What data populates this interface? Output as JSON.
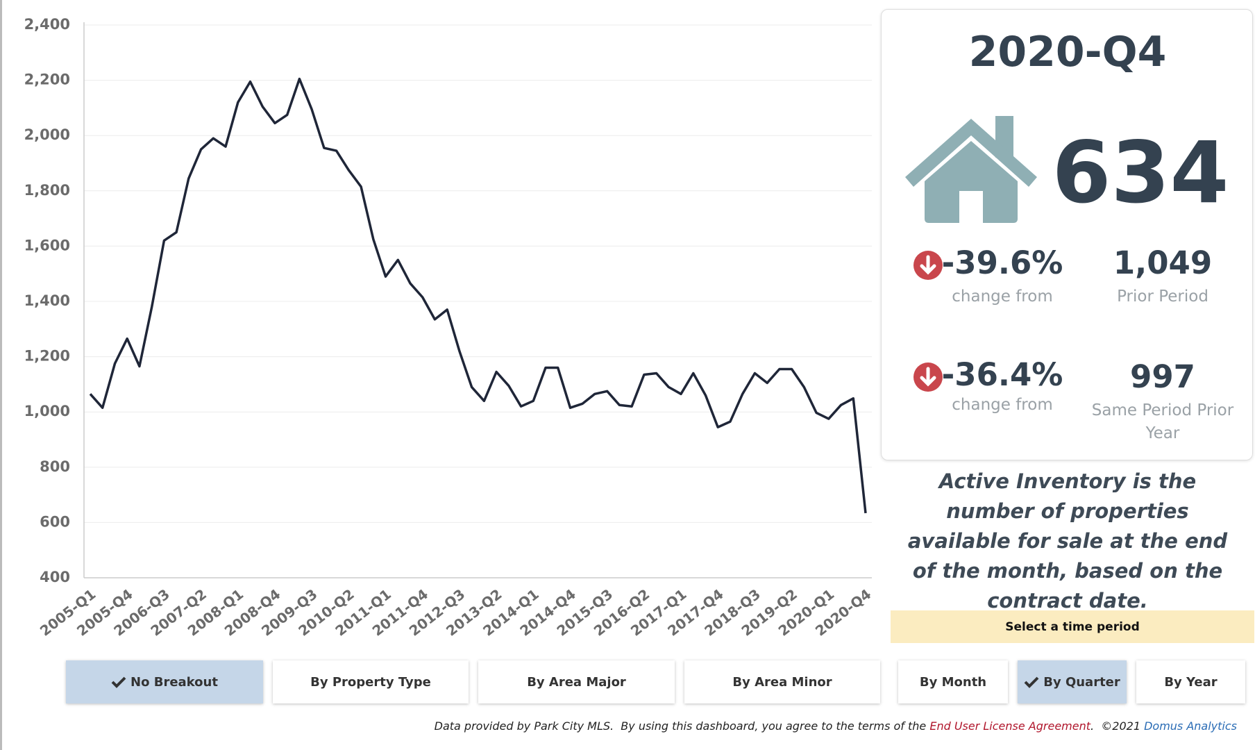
{
  "chart_data": {
    "type": "line",
    "categories": [
      "2005-Q1",
      null,
      null,
      "2005-Q4",
      null,
      null,
      "2006-Q3",
      null,
      null,
      "2007-Q2",
      null,
      null,
      "2008-Q1",
      null,
      null,
      "2008-Q4",
      null,
      null,
      "2009-Q3",
      null,
      null,
      "2010-Q2",
      null,
      null,
      "2011-Q1",
      null,
      null,
      "2011-Q4",
      null,
      null,
      "2012-Q3",
      null,
      null,
      "2013-Q2",
      null,
      null,
      "2014-Q1",
      null,
      null,
      "2014-Q4",
      null,
      null,
      "2015-Q3",
      null,
      null,
      "2016-Q2",
      null,
      null,
      "2017-Q1",
      null,
      null,
      "2017-Q4",
      null,
      null,
      "2018-Q3",
      null,
      null,
      "2019-Q2",
      null,
      null,
      "2020-Q1",
      null,
      null,
      "2020-Q4"
    ],
    "values": [
      1065,
      1015,
      1175,
      1265,
      1165,
      1380,
      1620,
      1650,
      1845,
      1950,
      1990,
      1960,
      2120,
      2195,
      2105,
      2045,
      2075,
      2205,
      2095,
      1955,
      1945,
      1875,
      1815,
      1625,
      1490,
      1550,
      1465,
      1415,
      1335,
      1370,
      1220,
      1090,
      1040,
      1145,
      1095,
      1020,
      1040,
      1160,
      1160,
      1015,
      1030,
      1065,
      1075,
      1025,
      1020,
      1135,
      1140,
      1090,
      1065,
      1140,
      1060,
      945,
      965,
      1065,
      1140,
      1105,
      1155,
      1155,
      1090,
      997,
      975,
      1025,
      1049,
      634
    ],
    "color": "#1f2638",
    "ylim": [
      400,
      2400
    ],
    "yticks": [
      400,
      600,
      800,
      {
        "value": 1000,
        "label": "1,000"
      },
      {
        "value": 1200,
        "label": "1,200"
      },
      {
        "value": 1400,
        "label": "1,400"
      },
      {
        "value": 1600,
        "label": "1,600"
      },
      {
        "value": 1800,
        "label": "1,800"
      },
      {
        "value": 2000,
        "label": "2,000"
      },
      {
        "value": 2200,
        "label": "2,200"
      },
      {
        "value": 2400,
        "label": "2,400"
      }
    ],
    "grid": true
  },
  "summary": {
    "period": "2020-Q4",
    "value": "634",
    "change1": "-39.6%",
    "change1_label": "change from",
    "prior": "1,049",
    "prior_label": "Prior Period",
    "change2": "-36.4%",
    "change2_label": "change from",
    "prior_year": "997",
    "prior_year_label": "Same Period Prior Year"
  },
  "description": "Active Inventory is the number of properties available for sale at the end of the month, based on the contract date.",
  "controls": {
    "breakout": [
      "No Breakout",
      "By Property Type",
      "By Area Major",
      "By Area Minor"
    ],
    "period_label": "Select a time period",
    "period": [
      "By Month",
      "By Quarter",
      "By Year"
    ]
  },
  "footer": {
    "text": "Data provided by Park City MLS.  By using this dashboard, you agree to the terms of the ",
    "link1": "End User License Agreement",
    "text2": ".  ©2021 ",
    "link2": "Domus Analytics"
  }
}
